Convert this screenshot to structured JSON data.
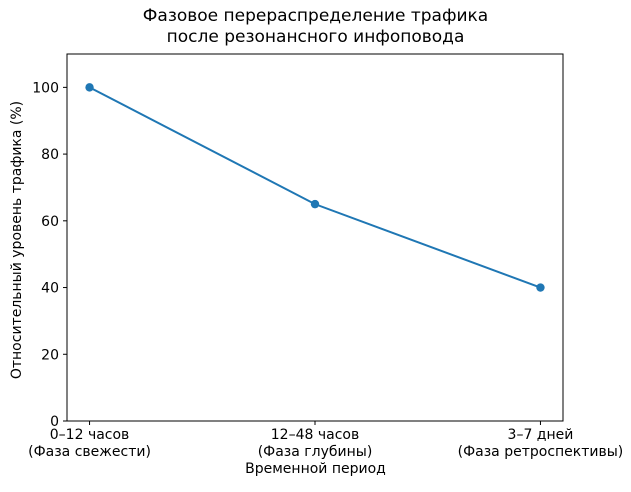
{
  "chart_data": {
    "type": "line",
    "title": "Фазовое перераспределение трафика\nпосле резонансного инфоповода",
    "xlabel": "Временной период",
    "ylabel": "Относительный уровень трафика (%)",
    "categories": [
      "0–12 часов\n(Фаза свежести)",
      "12–48 часов\n(Фаза глубины)",
      "3–7 дней\n(Фаза ретроспективы)"
    ],
    "values": [
      100,
      65,
      40
    ],
    "ylim": [
      0,
      110
    ],
    "yticks": [
      0,
      20,
      40,
      60,
      80,
      100
    ],
    "line_color": "#1f77b4",
    "marker": "circle",
    "grid": false,
    "legend": "none",
    "spine_color": "#000000"
  }
}
